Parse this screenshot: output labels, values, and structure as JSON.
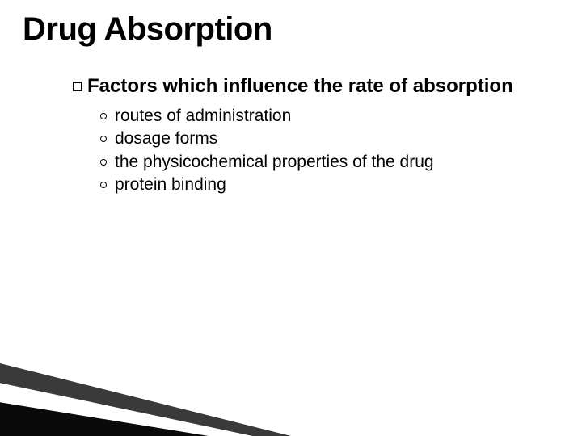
{
  "slide": {
    "title": "Drug Absorption",
    "heading": "Factors which influence the rate of absorption",
    "bullets": [
      "routes of administration",
      "dosage forms",
      "the physicochemical properties of the drug",
      "protein binding"
    ]
  },
  "style": {
    "background_color": "#ffffff",
    "title_fontsize": 40,
    "title_weight": 700,
    "heading_fontsize": 24,
    "heading_weight": 700,
    "bullet_fontsize": 21,
    "bullet_weight": 400,
    "text_color": "#000000",
    "wedge_colors": [
      "#3a3a3b",
      "#ffffff",
      "#0a0a0b"
    ]
  }
}
